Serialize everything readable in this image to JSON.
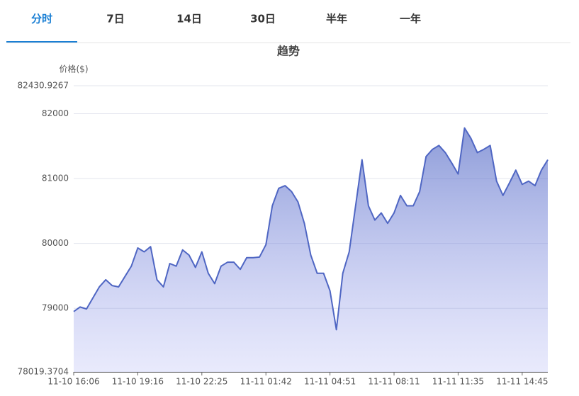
{
  "tabs": [
    "分时",
    "7日",
    "14日",
    "30日",
    "半年",
    "一年"
  ],
  "active_tab": 0,
  "chart_data": {
    "type": "area",
    "title": "趋势",
    "y_label": "价格($)",
    "color": "#4f66c3",
    "grid": true,
    "ylim": [
      78019.3704,
      82430.9267
    ],
    "yticks": [
      78019.3704,
      79000,
      80000,
      81000,
      82000,
      82430.9267
    ],
    "categories": [
      "11-10 16:06",
      null,
      null,
      null,
      null,
      null,
      null,
      null,
      null,
      null,
      "11-10 19:16",
      null,
      null,
      null,
      null,
      null,
      null,
      null,
      null,
      null,
      "11-10 22:25",
      null,
      null,
      null,
      null,
      null,
      null,
      null,
      null,
      null,
      "11-11 01:42",
      null,
      null,
      null,
      null,
      null,
      null,
      null,
      null,
      null,
      "11-11 04:51",
      null,
      null,
      null,
      null,
      null,
      null,
      null,
      null,
      null,
      "11-11 08:11",
      null,
      null,
      null,
      null,
      null,
      null,
      null,
      null,
      null,
      "11-11 11:35",
      null,
      null,
      null,
      null,
      null,
      null,
      null,
      null,
      null,
      "11-11 14:45",
      null,
      null,
      null,
      null
    ],
    "values": [
      78950,
      79020,
      78990,
      79160,
      79330,
      79440,
      79350,
      79330,
      79490,
      79650,
      79930,
      79870,
      79950,
      79440,
      79330,
      79690,
      79650,
      79900,
      79820,
      79630,
      79870,
      79540,
      79380,
      79650,
      79710,
      79710,
      79600,
      79780,
      79780,
      79790,
      79980,
      80580,
      80850,
      80890,
      80800,
      80640,
      80310,
      79820,
      79540,
      79540,
      79270,
      78670,
      79540,
      79870,
      80580,
      81290,
      80580,
      80360,
      80470,
      80310,
      80470,
      80740,
      80580,
      80580,
      80800,
      81340,
      81450,
      81510,
      81400,
      81240,
      81070,
      81780,
      81620,
      81400,
      81450,
      81510,
      80960,
      80740,
      80930,
      81130,
      80910,
      80960,
      80890,
      81130,
      81290
    ]
  }
}
